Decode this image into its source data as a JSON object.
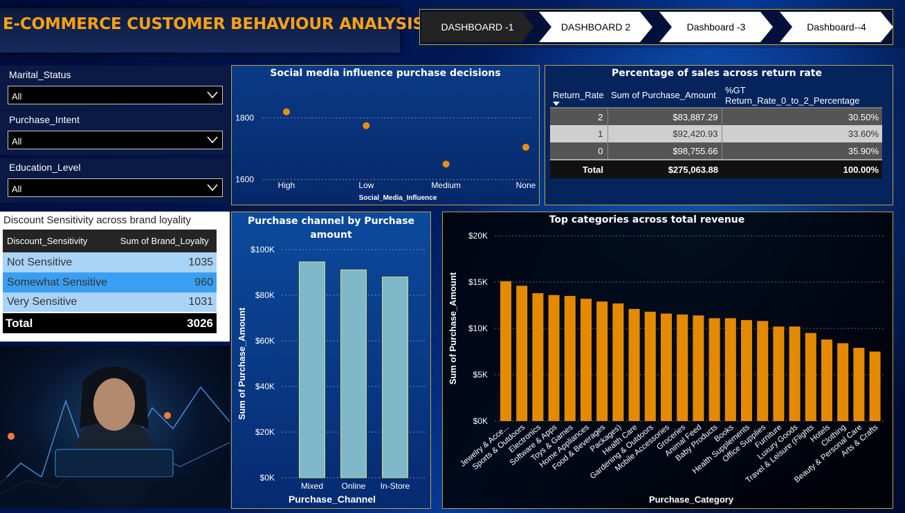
{
  "title": "E-COMMERCE CUSTOMER BEHAVIOUR ANALYSIS",
  "nav": [
    "DASHBOARD -1",
    "DASHBOARD 2",
    "Dashboard -3",
    "Dashboard--4"
  ],
  "slicers": [
    {
      "label": "Marital_Status",
      "value": "All"
    },
    {
      "label": "Purchase_Intent",
      "value": "All"
    },
    {
      "label": "Education_Level",
      "value": "All"
    }
  ],
  "discount_table": {
    "title": "Discount Sensitivity across brand loyality",
    "headers": [
      "Discount_Sensitivity",
      "Sum of Brand_Loyalty"
    ],
    "rows": [
      {
        "label": "Not Sensitive",
        "value": "1035"
      },
      {
        "label": "Somewhat Sensitive",
        "value": "960"
      },
      {
        "label": "Very Sensitive",
        "value": "1031"
      }
    ],
    "total_label": "Total",
    "total_value": "3026"
  },
  "return_table": {
    "title": "Percentage of sales across return rate",
    "headers": [
      "Return_Rate",
      "Sum of Purchase_Amount",
      "%GT Return_Rate_0_to_2_Percentage"
    ],
    "rows": [
      [
        "2",
        "$83,887.29",
        "30.50%"
      ],
      [
        "1",
        "$92,420.93",
        "33.60%"
      ],
      [
        "0",
        "$98,755.66",
        "35.90%"
      ]
    ],
    "total": [
      "Total",
      "$275,063.88",
      "100.00%"
    ]
  },
  "colors": {
    "accent": "#ffa10f",
    "bar_orange": "#e58a00",
    "bar_blue": "#7fb8c8",
    "panel_border": "#b9a83a"
  },
  "chart_data": [
    {
      "type": "scatter",
      "title": "Social media influence purchase decisions",
      "xlabel": "Social_Media_Influence",
      "ylabel": "",
      "categories": [
        "High",
        "Low",
        "Medium",
        "None"
      ],
      "values": [
        1820,
        1775,
        1650,
        1705
      ],
      "yticks": [
        "1600",
        "1800"
      ],
      "ylim": [
        1570,
        1880
      ]
    },
    {
      "type": "bar",
      "title": "Purchase channel by Purchase amount",
      "xlabel": "Purchase_Channel",
      "ylabel": "Sum of Purchase_Amount",
      "categories": [
        "Mixed",
        "Online",
        "In-Store"
      ],
      "values": [
        94600,
        91100,
        88000
      ],
      "yticks": [
        "$0K",
        "$20K",
        "$40K",
        "$60K",
        "$80K",
        "$100K"
      ],
      "ylim": [
        0,
        100000
      ]
    },
    {
      "type": "bar",
      "title": "Top categories across total revenue",
      "xlabel": "Purchase_Category",
      "ylabel": "Sum of Purchase_Amount",
      "categories": [
        "Jewelry & Acce...",
        "Sports & Outdoors",
        "Electronics",
        "Software & Apps",
        "Toys & Games",
        "Home Appliances",
        "Food & Beverages",
        "Packages)",
        "Health Care",
        "Gardening & Outdoors",
        "Mobile Accessories",
        "Groceries",
        "Animal Feed",
        "Baby Products",
        "Books",
        "Health Supplements",
        "Office Supplies",
        "Furniture",
        "Luxury Goods",
        "Travel & Leisure (Flights",
        "Hotels",
        "Clothing",
        "Beauty & Personal Care",
        "Arts & Crafts"
      ],
      "values": [
        15100,
        14600,
        13800,
        13600,
        13500,
        13200,
        12900,
        12700,
        12100,
        11800,
        11600,
        11500,
        11400,
        11100,
        11100,
        10900,
        10800,
        10200,
        10200,
        9500,
        8800,
        8400,
        7900,
        7500
      ],
      "yticks": [
        "$0K",
        "$5K",
        "$10K",
        "$15K",
        "$20K"
      ],
      "ylim": [
        0,
        20000
      ]
    }
  ]
}
